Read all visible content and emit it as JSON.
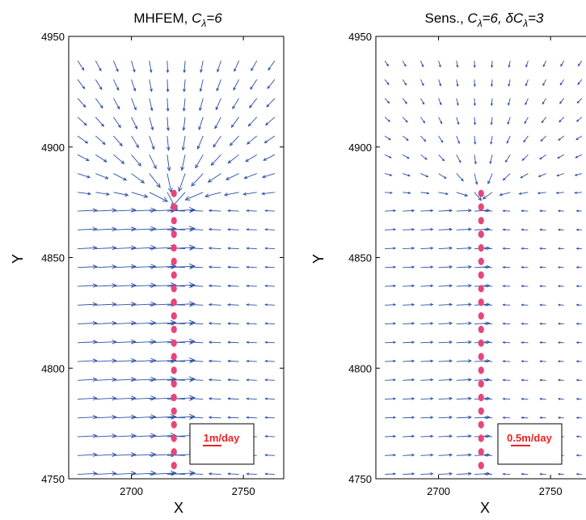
{
  "chart_data": [
    {
      "type": "quiver",
      "title": "MHFEM, Cλ=6",
      "title_parts": {
        "main": "MHFEM, ",
        "var": "C",
        "sub": "λ",
        "rest": "=6"
      },
      "xlabel": "X",
      "ylabel": "Y",
      "xlim": [
        2672,
        2768
      ],
      "ylim": [
        4750,
        4950
      ],
      "xticks": [
        2700,
        2750
      ],
      "yticks": [
        4750,
        4800,
        4850,
        4900,
        4950
      ],
      "scale_label": "1m/day",
      "arrow_color": "#2a4fa8",
      "well_color": "#e8457a",
      "well_x": 2719,
      "well_y_range": [
        4756,
        4879
      ],
      "source": {
        "x": 2719,
        "y": 4874
      }
    },
    {
      "type": "quiver",
      "title": "Sens., Cλ=6, δCλ=3",
      "title_parts": {
        "main": "Sens., ",
        "var": "C",
        "sub": "λ",
        "rest": "=6, ",
        "var2": "δC",
        "sub2": "λ",
        "rest2": "=3"
      },
      "xlabel": "X",
      "ylabel": "Y",
      "xlim": [
        2672,
        2768
      ],
      "ylim": [
        4750,
        4950
      ],
      "xticks": [
        2700,
        2750
      ],
      "yticks": [
        4750,
        4800,
        4850,
        4900,
        4950
      ],
      "scale_label": "0.5m/day",
      "arrow_color": "#2a4fa8",
      "well_color": "#e8457a",
      "well_x": 2719,
      "well_y_range": [
        4756,
        4879
      ],
      "source": {
        "x": 2719,
        "y": 4876
      }
    }
  ]
}
